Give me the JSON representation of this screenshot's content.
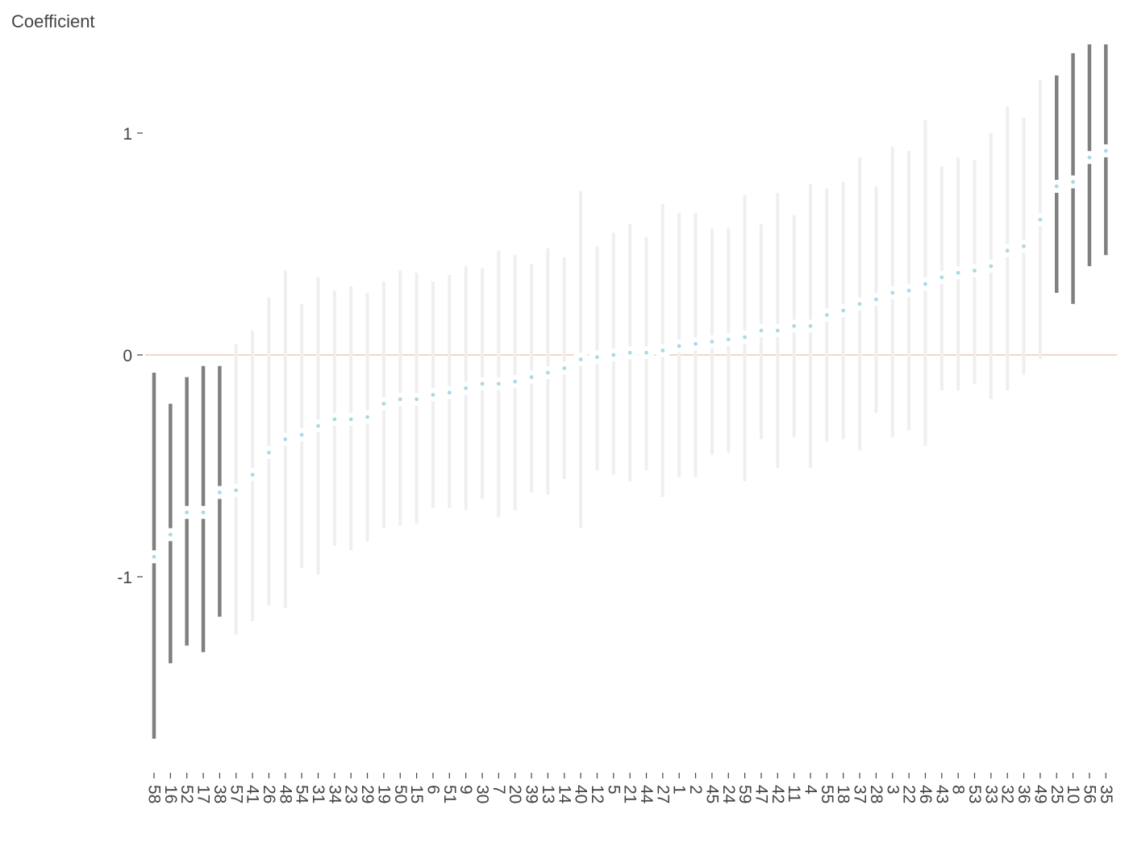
{
  "chart_data": {
    "type": "scatter",
    "title": "",
    "xlabel": "",
    "ylabel": "Coefficient",
    "ylim": [
      -1.9,
      1.4
    ],
    "yticks": [
      -1,
      0,
      1
    ],
    "grid": false,
    "legend": "none",
    "reference_line": 0,
    "colors": {
      "point": "#add8e6",
      "significant_bar": "#808080",
      "nonsignificant_bar": "#efefef",
      "reference_line": "#f4c7b8",
      "axis_text": "#444444"
    },
    "categories": [
      "58",
      "16",
      "52",
      "17",
      "38",
      "57",
      "41",
      "26",
      "48",
      "54",
      "31",
      "34",
      "23",
      "29",
      "19",
      "50",
      "15",
      "6",
      "51",
      "9",
      "30",
      "7",
      "20",
      "39",
      "13",
      "14",
      "40",
      "12",
      "5",
      "21",
      "44",
      "27",
      "1",
      "2",
      "45",
      "24",
      "59",
      "47",
      "42",
      "11",
      "4",
      "55",
      "18",
      "37",
      "28",
      "3",
      "22",
      "46",
      "43",
      "8",
      "53",
      "33",
      "32",
      "36",
      "49",
      "25",
      "10",
      "56",
      "35"
    ],
    "values": [
      -0.91,
      -0.81,
      -0.71,
      -0.71,
      -0.62,
      -0.61,
      -0.54,
      -0.44,
      -0.38,
      -0.36,
      -0.32,
      -0.29,
      -0.29,
      -0.28,
      -0.22,
      -0.2,
      -0.2,
      -0.18,
      -0.17,
      -0.15,
      -0.13,
      -0.13,
      -0.12,
      -0.1,
      -0.08,
      -0.06,
      -0.02,
      -0.01,
      0.0,
      0.01,
      0.01,
      0.02,
      0.04,
      0.05,
      0.06,
      0.07,
      0.08,
      0.11,
      0.11,
      0.13,
      0.13,
      0.18,
      0.2,
      0.23,
      0.25,
      0.28,
      0.29,
      0.32,
      0.35,
      0.37,
      0.38,
      0.4,
      0.47,
      0.49,
      0.61,
      0.76,
      0.78,
      0.89,
      0.92
    ],
    "lower": [
      -1.73,
      -1.39,
      -1.31,
      -1.34,
      -1.18,
      -1.26,
      -1.2,
      -1.13,
      -1.14,
      -0.96,
      -0.99,
      -0.86,
      -0.88,
      -0.84,
      -0.78,
      -0.77,
      -0.76,
      -0.69,
      -0.69,
      -0.7,
      -0.65,
      -0.73,
      -0.7,
      -0.62,
      -0.63,
      -0.56,
      -0.78,
      -0.52,
      -0.54,
      -0.57,
      -0.52,
      -0.64,
      -0.55,
      -0.55,
      -0.45,
      -0.44,
      -0.57,
      -0.38,
      -0.51,
      -0.37,
      -0.51,
      -0.39,
      -0.38,
      -0.43,
      -0.26,
      -0.37,
      -0.34,
      -0.41,
      -0.16,
      -0.16,
      -0.13,
      -0.2,
      -0.16,
      -0.09,
      -0.02,
      0.28,
      0.23,
      0.4,
      0.45
    ],
    "upper": [
      -0.08,
      -0.22,
      -0.1,
      -0.05,
      -0.05,
      0.05,
      0.11,
      0.26,
      0.38,
      0.23,
      0.35,
      0.29,
      0.31,
      0.28,
      0.33,
      0.38,
      0.37,
      0.33,
      0.36,
      0.4,
      0.39,
      0.47,
      0.45,
      0.41,
      0.48,
      0.44,
      0.74,
      0.49,
      0.55,
      0.59,
      0.53,
      0.68,
      0.64,
      0.64,
      0.57,
      0.57,
      0.72,
      0.59,
      0.73,
      0.63,
      0.77,
      0.75,
      0.78,
      0.89,
      0.76,
      0.94,
      0.92,
      1.06,
      0.85,
      0.89,
      0.88,
      1.0,
      1.12,
      1.07,
      1.24,
      1.26,
      1.36,
      1.4,
      1.4
    ]
  }
}
